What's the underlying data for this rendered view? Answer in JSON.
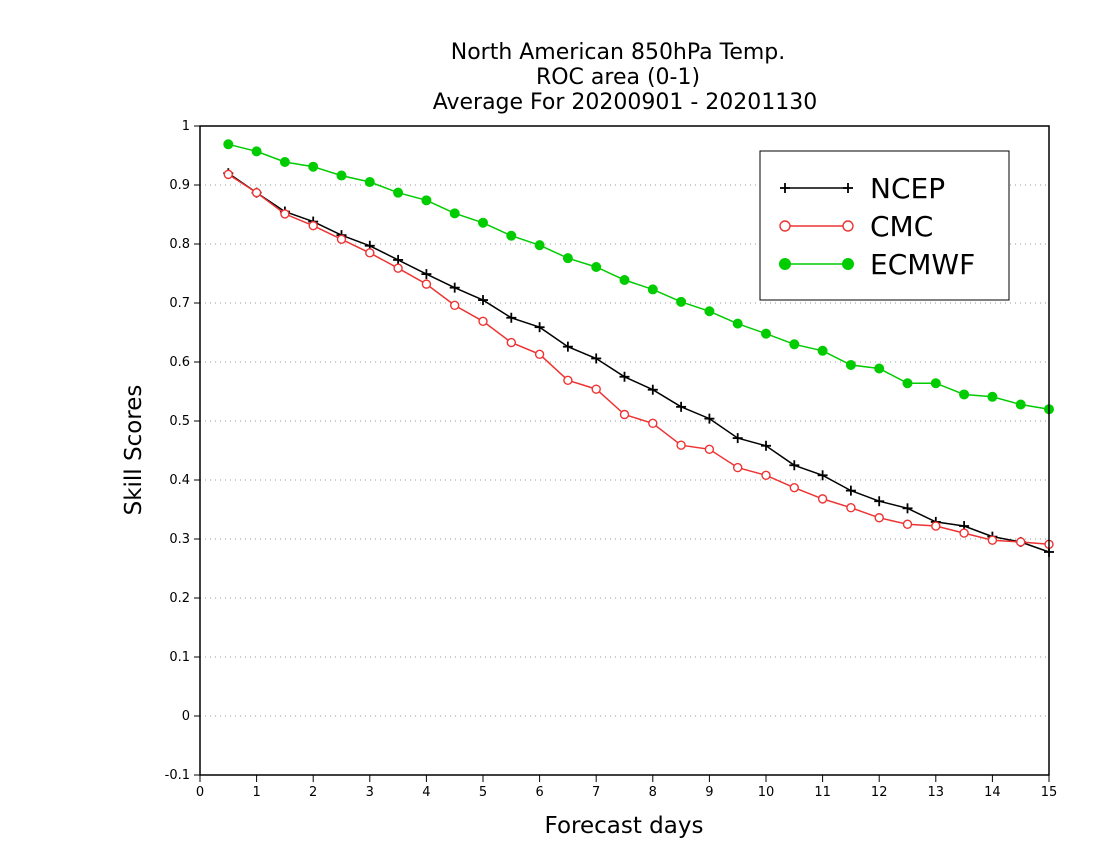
{
  "chart_data": {
    "type": "line",
    "title_lines": [
      "North American 850hPa Temp.",
      "ROC area (0-1)",
      "Average For 20200901 - 20201130"
    ],
    "xlabel": "Forecast days",
    "ylabel": "Skill Scores",
    "xlim": [
      0,
      15
    ],
    "ylim": [
      -0.1,
      1
    ],
    "x_ticks": [
      "0",
      "1",
      "2",
      "3",
      "4",
      "5",
      "6",
      "7",
      "8",
      "9",
      "10",
      "11",
      "12",
      "13",
      "14",
      "15"
    ],
    "y_ticks": [
      "-0.1",
      "0",
      "0.1",
      "0.2",
      "0.3",
      "0.4",
      "0.5",
      "0.6",
      "0.7",
      "0.8",
      "0.9",
      "1"
    ],
    "grid": "horizontal dotted",
    "legend_position": "top-right",
    "x": [
      0.5,
      1,
      1.5,
      2,
      2.5,
      3,
      3.5,
      4,
      4.5,
      5,
      5.5,
      6,
      6.5,
      7,
      7.5,
      8,
      8.5,
      9,
      9.5,
      10,
      10.5,
      11,
      11.5,
      12,
      12.5,
      13,
      13.5,
      14,
      14.5,
      15
    ],
    "series": [
      {
        "name": "NCEP",
        "color": "#000000",
        "marker": "plus",
        "values": [
          0.92,
          0.887,
          0.855,
          0.838,
          0.815,
          0.797,
          0.773,
          0.749,
          0.726,
          0.705,
          0.675,
          0.659,
          0.626,
          0.606,
          0.575,
          0.553,
          0.524,
          0.504,
          0.471,
          0.458,
          0.425,
          0.408,
          0.382,
          0.364,
          0.352,
          0.329,
          0.322,
          0.304,
          0.295,
          0.278
        ]
      },
      {
        "name": "CMC",
        "color": "#ee3333",
        "marker": "open-circle",
        "values": [
          0.918,
          0.887,
          0.851,
          0.831,
          0.808,
          0.785,
          0.759,
          0.732,
          0.696,
          0.669,
          0.633,
          0.613,
          0.569,
          0.554,
          0.511,
          0.496,
          0.459,
          0.452,
          0.421,
          0.408,
          0.387,
          0.368,
          0.353,
          0.336,
          0.325,
          0.322,
          0.31,
          0.298,
          0.295,
          0.291
        ]
      },
      {
        "name": "ECMWF",
        "color": "#00cc00",
        "marker": "filled-circle",
        "values": [
          0.969,
          0.957,
          0.939,
          0.931,
          0.916,
          0.905,
          0.887,
          0.874,
          0.852,
          0.836,
          0.814,
          0.798,
          0.776,
          0.761,
          0.739,
          0.723,
          0.702,
          0.686,
          0.665,
          0.648,
          0.63,
          0.619,
          0.595,
          0.589,
          0.564,
          0.564,
          0.545,
          0.541,
          0.528,
          0.52
        ]
      }
    ]
  }
}
